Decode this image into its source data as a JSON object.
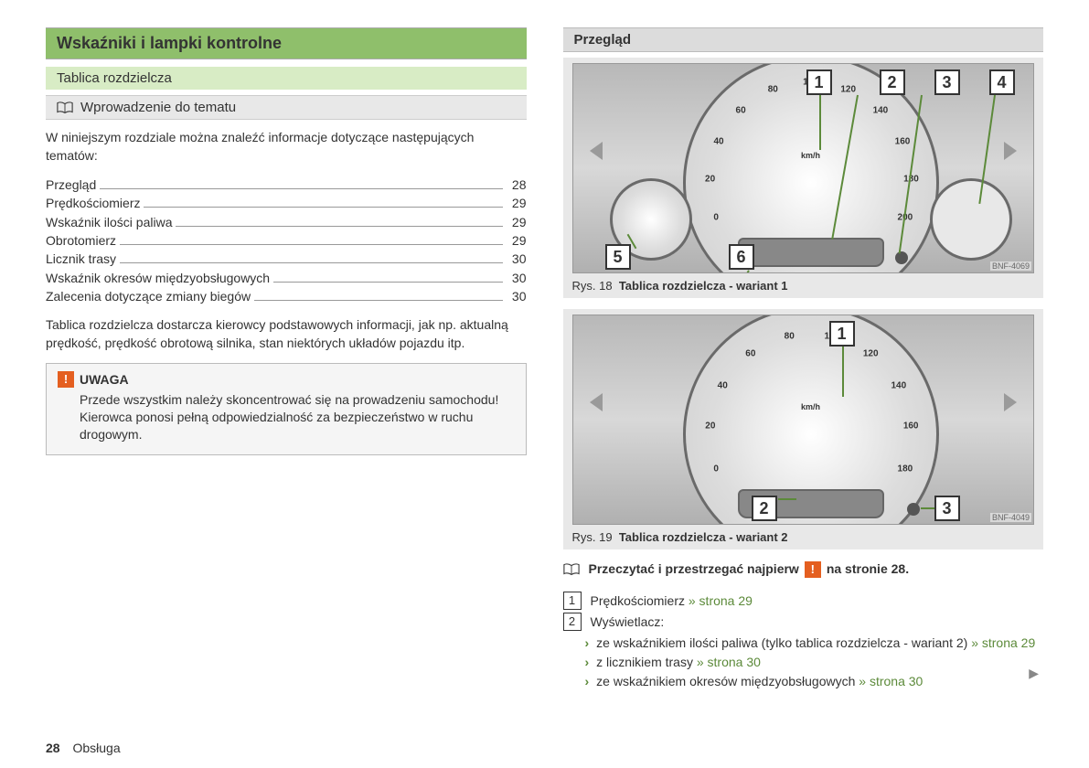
{
  "left": {
    "section_title": "Wskaźniki i lampki kontrolne",
    "subsection_title": "Tablica rozdzielcza",
    "sub2_title": "Wprowadzenie do tematu",
    "intro": "W niniejszym rozdziale można znaleźć informacje dotyczące następujących tematów:",
    "toc": [
      {
        "label": "Przegląd",
        "page": "28"
      },
      {
        "label": "Prędkościomierz",
        "page": "29"
      },
      {
        "label": "Wskaźnik ilości paliwa",
        "page": "29"
      },
      {
        "label": "Obrotomierz",
        "page": "29"
      },
      {
        "label": "Licznik trasy",
        "page": "30"
      },
      {
        "label": "Wskaźnik okresów międzyobsługowych",
        "page": "30"
      },
      {
        "label": "Zalecenia dotyczące zmiany biegów",
        "page": "30"
      }
    ],
    "body_text": "Tablica rozdzielcza dostarcza kierowcy podstawowych informacji, jak np. aktualną prędkość, prędkość obrotową silnika, stan niektórych układów pojazdu itp.",
    "warn_head": "UWAGA",
    "warn_icon": "!",
    "warn_body": "Przede wszystkim należy skoncentrować się na prowadzeniu samochodu! Kierowca ponosi pełną odpowiedzialność za bezpieczeństwo w ruchu drogowym."
  },
  "right": {
    "subhead": "Przegląd",
    "fig1": {
      "tag": "BNF-4069",
      "callouts": [
        "1",
        "2",
        "3",
        "4",
        "5",
        "6"
      ],
      "caption_prefix": "Rys. 18",
      "caption_bold": "Tablica rozdzielcza - wariant 1",
      "speedo_ticks": [
        "0",
        "20",
        "40",
        "60",
        "80",
        "100",
        "120",
        "140",
        "160",
        "180",
        "200"
      ],
      "unit": "km/h"
    },
    "fig2": {
      "tag": "BNF-4049",
      "callouts": [
        "1",
        "2",
        "3"
      ],
      "caption_prefix": "Rys. 19",
      "caption_bold": "Tablica rozdzielcza - wariant 2",
      "speedo_ticks": [
        "0",
        "20",
        "40",
        "60",
        "80",
        "100",
        "120",
        "140",
        "160",
        "180"
      ],
      "unit": "km/h"
    },
    "read_first_a": "Przeczytać i przestrzegać najpierw",
    "read_first_icon": "!",
    "read_first_b": "na stronie  28.",
    "legend": [
      {
        "n": "1",
        "text": "Prędkościomierz",
        "link": "» strona 29"
      },
      {
        "n": "2",
        "text": "Wyświetlacz:",
        "link": ""
      }
    ],
    "sublist": [
      {
        "text": "ze wskaźnikiem ilości paliwa (tylko tablica rozdzielcza - wariant 2)",
        "link": "» strona 29"
      },
      {
        "text": "z licznikiem trasy",
        "link": "» strona 30"
      },
      {
        "text": "ze wskaźnikiem okresów międzyobsługowych",
        "link": "» strona 30"
      }
    ]
  },
  "footer_page": "28",
  "footer_title": "Obsługa"
}
